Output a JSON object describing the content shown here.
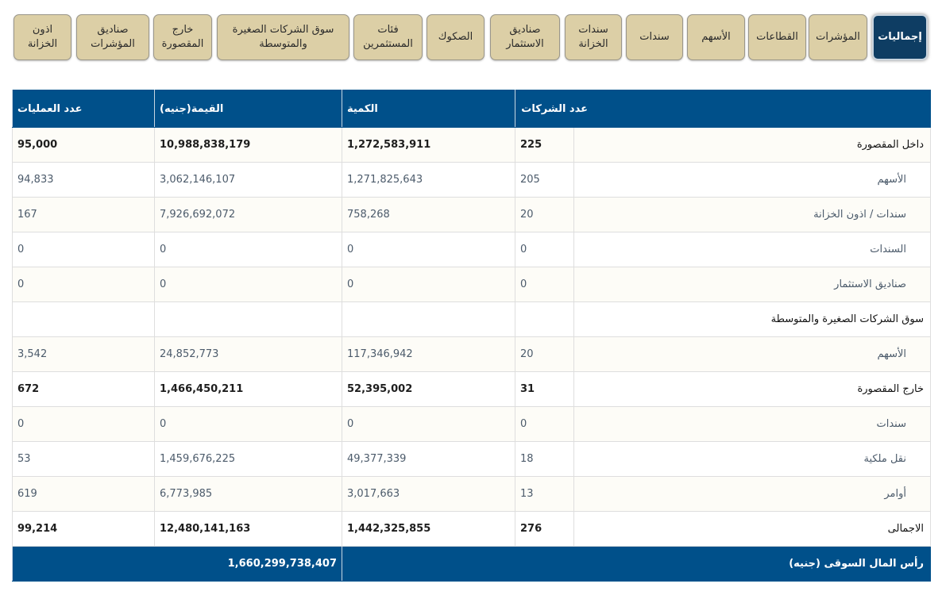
{
  "tabs": [
    {
      "label": "إجماليات",
      "active": true
    },
    {
      "label": "المؤشرات"
    },
    {
      "label": "القطاعات"
    },
    {
      "label": "الأسهم"
    },
    {
      "label": "سندات"
    },
    {
      "label": "سندات الخزانة"
    },
    {
      "label": "صناديق الاستثمار"
    },
    {
      "label": "الصكوك"
    },
    {
      "label": "فئات المستثمرين"
    },
    {
      "label": "سوق الشركات الصغيرة والمتوسطة"
    },
    {
      "label": "خارج المقصورة"
    },
    {
      "label": "صناديق المؤشرات"
    },
    {
      "label": "اذون الخزانة"
    }
  ],
  "table": {
    "headers": {
      "count": "عدد الشركات",
      "quantity": "الكمية",
      "value": "القيمة(جنيه)",
      "trades": "عدد العمليات"
    },
    "rows": [
      {
        "type": "main",
        "label": "داخل المقصورة",
        "count": "225",
        "quantity": "1,272,583,911",
        "value": "10,988,838,179",
        "trades": "95,000"
      },
      {
        "type": "sub",
        "label": "الأسهم",
        "count": "205",
        "quantity": "1,271,825,643",
        "value": "3,062,146,107",
        "trades": "94,833"
      },
      {
        "type": "sub",
        "label": "سندات / اذون الخزانة",
        "count": "20",
        "quantity": "758,268",
        "value": "7,926,692,072",
        "trades": "167"
      },
      {
        "type": "sub",
        "label": "السندات",
        "count": "0",
        "quantity": "0",
        "value": "0",
        "trades": "0"
      },
      {
        "type": "sub",
        "label": "صناديق الاستثمار",
        "count": "0",
        "quantity": "0",
        "value": "0",
        "trades": "0"
      },
      {
        "type": "main",
        "label": "سوق الشركات الصغيرة والمتوسطة",
        "count": "",
        "quantity": "",
        "value": "",
        "trades": ""
      },
      {
        "type": "sub",
        "label": "الأسهم",
        "count": "20",
        "quantity": "117,346,942",
        "value": "24,852,773",
        "trades": "3,542"
      },
      {
        "type": "main",
        "label": "خارج المقصورة",
        "count": "31",
        "quantity": "52,395,002",
        "value": "1,466,450,211",
        "trades": "672"
      },
      {
        "type": "sub",
        "label": "سندات",
        "count": "0",
        "quantity": "0",
        "value": "0",
        "trades": "0"
      },
      {
        "type": "sub",
        "label": "نقل ملكية",
        "count": "18",
        "quantity": "49,377,339",
        "value": "1,459,676,225",
        "trades": "53"
      },
      {
        "type": "sub",
        "label": "أوامر",
        "count": "13",
        "quantity": "3,017,663",
        "value": "6,773,985",
        "trades": "619"
      },
      {
        "type": "main",
        "label": "الاجمالى",
        "count": "276",
        "quantity": "1,442,325,855",
        "value": "12,480,141,163",
        "trades": "99,214"
      }
    ],
    "footer": {
      "label": "رأس المال السوقى (جنيه)",
      "value": "1,660,299,738,407"
    }
  }
}
